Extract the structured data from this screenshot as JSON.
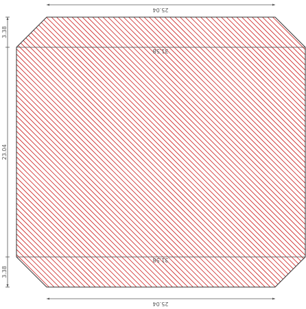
{
  "drawing": {
    "hatch_color": "#cc2222",
    "outline_color": "#333333",
    "dimensions": {
      "top_width": "25.04",
      "bottom_width": "25.04",
      "upper_fold_label": "31.58",
      "lower_fold_label": "31.58",
      "left_top_height": "3.38",
      "left_middle_height": "23.04",
      "left_bottom_height": "3.38"
    }
  }
}
